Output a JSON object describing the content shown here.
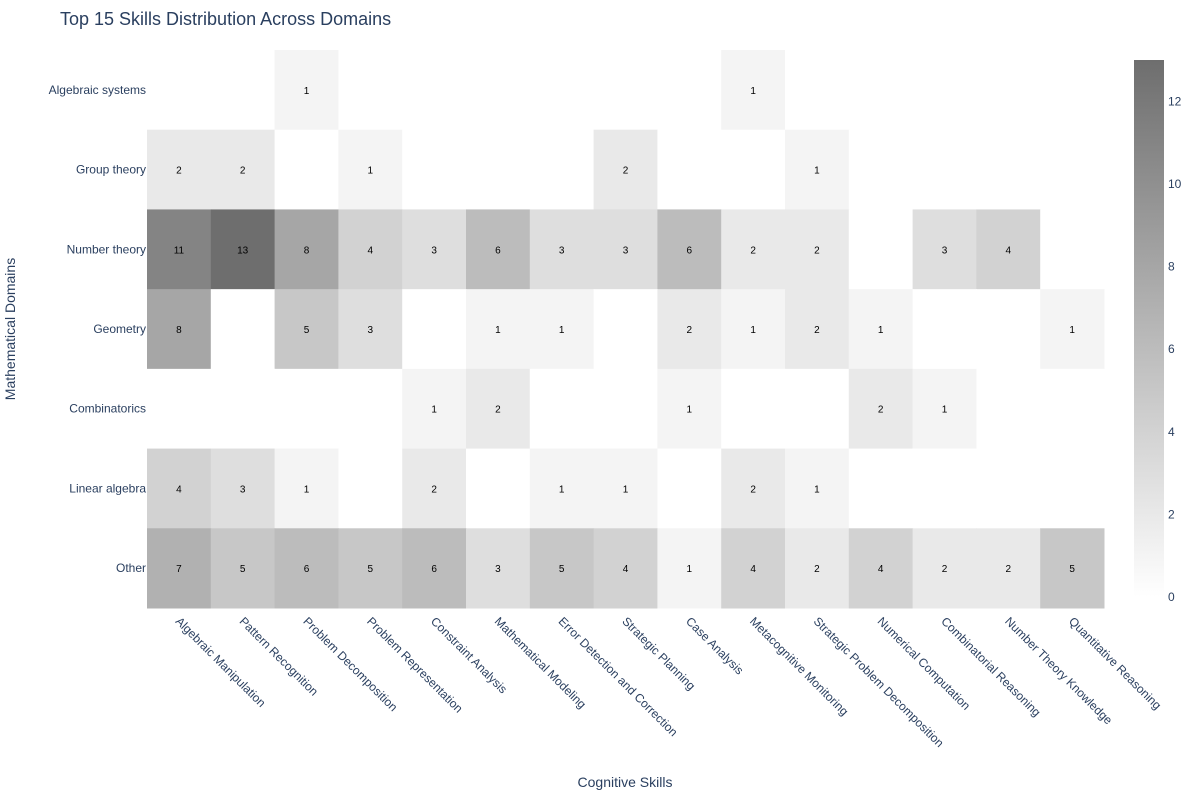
{
  "chart_data": {
    "type": "heatmap",
    "title": "Top 15 Skills Distribution Across Domains",
    "xlabel": "Cognitive Skills",
    "ylabel": "Mathematical Domains",
    "x_categories": [
      "Algebraic Manipulation",
      "Pattern Recognition",
      "Problem Decomposition",
      "Problem Representation",
      "Constraint Analysis",
      "Mathematical Modeling",
      "Error Detection and Correction",
      "Strategic Planning",
      "Case Analysis",
      "Metacognitive Monitoring",
      "Strategic Problem Decomposition",
      "Numerical Computation",
      "Combinatorial Reasoning",
      "Number Theory Knowledge",
      "Quantitative Reasoning"
    ],
    "y_categories": [
      "Algebraic systems",
      "Group theory",
      "Number theory",
      "Geometry",
      "Combinatorics",
      "Linear algebra",
      "Other"
    ],
    "values": [
      [
        0,
        0,
        1,
        0,
        0,
        0,
        0,
        0,
        0,
        1,
        0,
        0,
        0,
        0,
        0
      ],
      [
        2,
        2,
        0,
        1,
        0,
        0,
        0,
        2,
        0,
        0,
        1,
        0,
        0,
        0,
        0
      ],
      [
        11,
        13,
        8,
        4,
        3,
        6,
        3,
        3,
        6,
        2,
        2,
        0,
        3,
        4,
        0
      ],
      [
        8,
        0,
        5,
        3,
        0,
        1,
        1,
        0,
        2,
        1,
        2,
        1,
        0,
        0,
        1
      ],
      [
        0,
        0,
        0,
        0,
        1,
        2,
        0,
        0,
        1,
        0,
        0,
        2,
        1,
        0,
        0
      ],
      [
        4,
        3,
        1,
        0,
        2,
        0,
        1,
        1,
        0,
        2,
        1,
        0,
        0,
        0,
        0
      ],
      [
        7,
        5,
        6,
        5,
        6,
        3,
        5,
        4,
        1,
        4,
        2,
        4,
        2,
        2,
        5
      ]
    ],
    "zmin": 0,
    "zmax": 13,
    "colorbar_ticks": [
      0,
      2,
      4,
      6,
      8,
      10,
      12
    ],
    "colorscale": [
      "#ffffff",
      "#6e6e6e"
    ],
    "show_zero_labels": false
  }
}
